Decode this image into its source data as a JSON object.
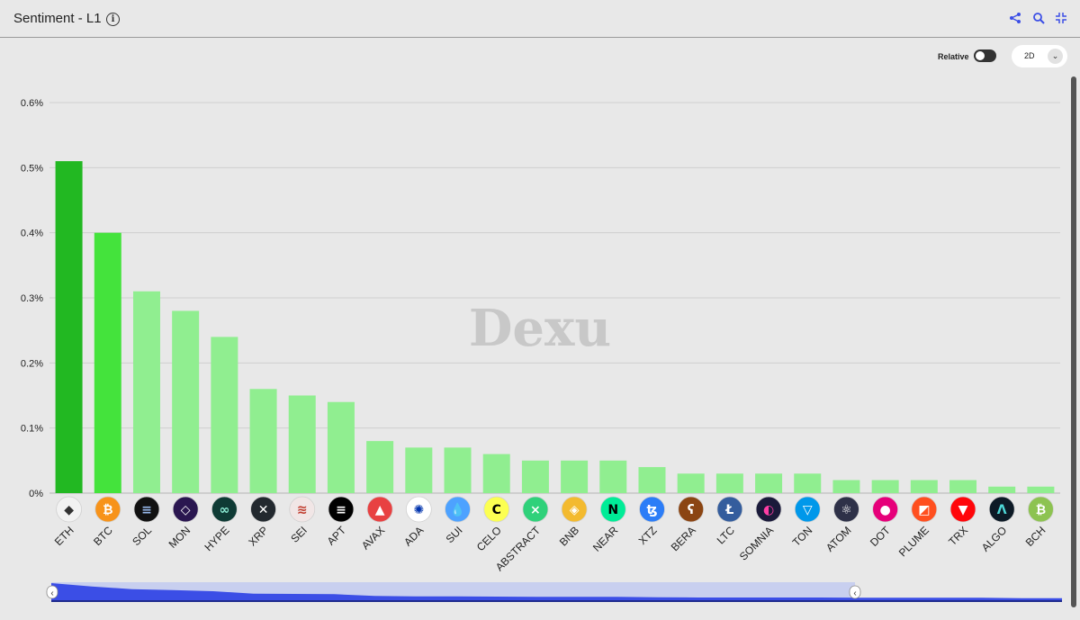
{
  "header": {
    "title": "Sentiment - L1",
    "info_icon": "info-icon",
    "tools": [
      "share-icon",
      "zoom-icon",
      "collapse-icon"
    ]
  },
  "controls": {
    "relative_label": "Relative",
    "relative_enabled": true,
    "timeframe": "2D"
  },
  "colors": {
    "bar_top1": "#22b822",
    "bar_top2": "#44e33c",
    "bar_other": "#90ee90",
    "navigator": "#3b4ee6",
    "navigator_mask": "#c8cfef"
  },
  "watermark": "Dexu",
  "chart_data": {
    "type": "bar",
    "categories": [
      "ETH",
      "BTC",
      "SOL",
      "MON",
      "HYPE",
      "XRP",
      "SEI",
      "APT",
      "AVAX",
      "ADA",
      "SUI",
      "CELO",
      "ABSTRACT",
      "BNB",
      "NEAR",
      "XTZ",
      "BERA",
      "LTC",
      "SOMNIA",
      "TON",
      "ATOM",
      "DOT",
      "PLUME",
      "TRX",
      "ALGO",
      "BCH"
    ],
    "values": [
      0.51,
      0.4,
      0.31,
      0.28,
      0.24,
      0.16,
      0.15,
      0.14,
      0.08,
      0.07,
      0.07,
      0.06,
      0.05,
      0.05,
      0.05,
      0.04,
      0.03,
      0.03,
      0.03,
      0.03,
      0.02,
      0.02,
      0.02,
      0.02,
      0.01,
      0.01
    ],
    "ylim": [
      0,
      0.6
    ],
    "yticks": [
      "0%",
      "0.1%",
      "0.2%",
      "0.3%",
      "0.4%",
      "0.5%",
      "0.6%"
    ],
    "grid": true,
    "coin_icons": [
      {
        "bg": "#f2f2f2",
        "fg": "#333",
        "glyph": "◆"
      },
      {
        "bg": "#f7931a",
        "fg": "#fff",
        "glyph": "₿"
      },
      {
        "bg": "#111",
        "fg": "#9be",
        "glyph": "≡"
      },
      {
        "bg": "#2a1650",
        "fg": "#fff",
        "glyph": "◇"
      },
      {
        "bg": "#0f3b35",
        "fg": "#8ff0d8",
        "glyph": "∞"
      },
      {
        "bg": "#23292f",
        "fg": "#fff",
        "glyph": "✕"
      },
      {
        "bg": "#f1e6e6",
        "fg": "#c0392b",
        "glyph": "≋"
      },
      {
        "bg": "#000",
        "fg": "#fff",
        "glyph": "≡"
      },
      {
        "bg": "#e84142",
        "fg": "#fff",
        "glyph": "▲"
      },
      {
        "bg": "#ffffff",
        "fg": "#0033ad",
        "glyph": "✺"
      },
      {
        "bg": "#4da2ff",
        "fg": "#fff",
        "glyph": "💧"
      },
      {
        "bg": "#fcff52",
        "fg": "#000",
        "glyph": "C"
      },
      {
        "bg": "#2fd17a",
        "fg": "#fff",
        "glyph": "⨯"
      },
      {
        "bg": "#f3ba2f",
        "fg": "#fff",
        "glyph": "◈"
      },
      {
        "bg": "#00ec97",
        "fg": "#000",
        "glyph": "N"
      },
      {
        "bg": "#2c7df7",
        "fg": "#fff",
        "glyph": "ꜩ"
      },
      {
        "bg": "#8b4513",
        "fg": "#fff",
        "glyph": "ʕ"
      },
      {
        "bg": "#345d9d",
        "fg": "#fff",
        "glyph": "Ł"
      },
      {
        "bg": "#1a1a3a",
        "fg": "#ff3ea5",
        "glyph": "◐"
      },
      {
        "bg": "#0098ea",
        "fg": "#fff",
        "glyph": "▽"
      },
      {
        "bg": "#2e3148",
        "fg": "#fff",
        "glyph": "⚛"
      },
      {
        "bg": "#e6007a",
        "fg": "#fff",
        "glyph": "●"
      },
      {
        "bg": "#ff4f1f",
        "fg": "#fff",
        "glyph": "◩"
      },
      {
        "bg": "#ff060a",
        "fg": "#fff",
        "glyph": "▼"
      },
      {
        "bg": "#0d1a26",
        "fg": "#4ed8d8",
        "glyph": "Λ"
      },
      {
        "bg": "#8dc351",
        "fg": "#fff",
        "glyph": "₿"
      }
    ]
  }
}
